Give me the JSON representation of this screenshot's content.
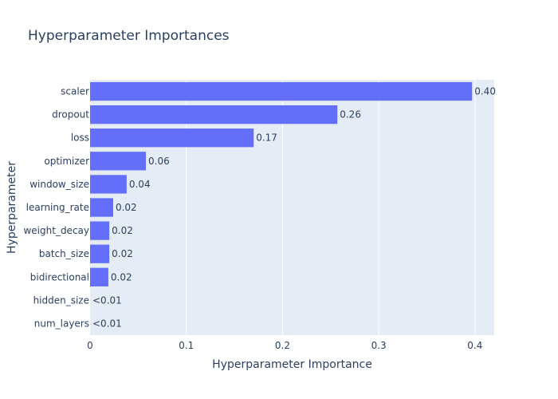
{
  "chart_data": {
    "type": "bar",
    "orientation": "horizontal",
    "title": "Hyperparameter Importances",
    "xlabel": "Hyperparameter Importance",
    "ylabel": "Hyperparameter",
    "xlim": [
      0,
      0.42
    ],
    "xticks": [
      0,
      0.1,
      0.2,
      0.3,
      0.4
    ],
    "xtick_labels": [
      "0",
      "0.1",
      "0.2",
      "0.3",
      "0.4"
    ],
    "grid": true,
    "colors": {
      "bar": "#636efa",
      "plot_bg": "#e5ecf6",
      "grid": "#ffffff",
      "text": "#2a3f5f"
    },
    "categories": [
      "scaler",
      "dropout",
      "loss",
      "optimizer",
      "window_size",
      "learning_rate",
      "weight_decay",
      "batch_size",
      "bidirectional",
      "hidden_size",
      "num_layers"
    ],
    "values": [
      0.397,
      0.257,
      0.17,
      0.058,
      0.038,
      0.024,
      0.02,
      0.02,
      0.019,
      0.0,
      0.0
    ],
    "value_labels": [
      "0.40",
      "0.26",
      "0.17",
      "0.06",
      "0.04",
      "0.02",
      "0.02",
      "0.02",
      "0.02",
      "<0.01",
      "<0.01"
    ]
  }
}
